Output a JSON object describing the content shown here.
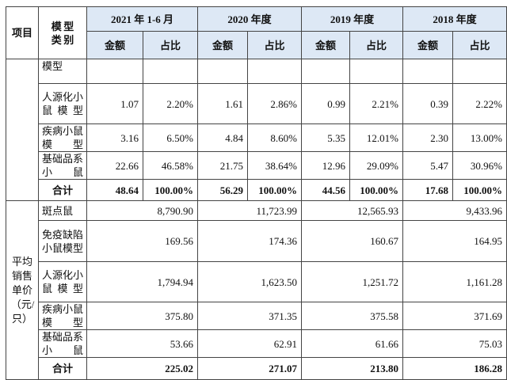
{
  "header": {
    "item": "项目",
    "model_type": "模型类别",
    "periods": [
      "2021 年 1-6 月",
      "2020 年度",
      "2019 年度",
      "2018 年度"
    ],
    "amount": "金额",
    "ratio": "占比"
  },
  "revenue": {
    "rows": [
      {
        "name": "模型",
        "cells": [
          "",
          "",
          "",
          "",
          "",
          "",
          "",
          ""
        ]
      },
      {
        "name": "人源化小鼠模型",
        "cells": [
          "1.07",
          "2.20%",
          "1.61",
          "2.86%",
          "0.99",
          "2.21%",
          "0.39",
          "2.22%"
        ]
      },
      {
        "name": "疾病小鼠模型",
        "cells": [
          "3.16",
          "6.50%",
          "4.84",
          "8.60%",
          "5.35",
          "12.01%",
          "2.30",
          "13.00%"
        ]
      },
      {
        "name": "基础品系小鼠",
        "cells": [
          "22.66",
          "46.58%",
          "21.75",
          "38.64%",
          "12.96",
          "29.09%",
          "5.47",
          "30.96%"
        ]
      }
    ],
    "total": {
      "name": "合计",
      "cells": [
        "48.64",
        "100.00%",
        "56.29",
        "100.00%",
        "44.56",
        "100.00%",
        "17.68",
        "100.00%"
      ]
    }
  },
  "price": {
    "section": "平均销售单价（元/只）",
    "rows": [
      {
        "name": "斑点鼠",
        "cells": [
          "8,790.90",
          "11,723.99",
          "12,565.93",
          "9,433.96"
        ]
      },
      {
        "name": "免疫缺陷小鼠模型",
        "cells": [
          "169.56",
          "174.36",
          "160.67",
          "164.95"
        ]
      },
      {
        "name": "人源化小鼠模型",
        "cells": [
          "1,794.94",
          "1,623.50",
          "1,251.72",
          "1,161.28"
        ]
      },
      {
        "name": "疾病小鼠模型",
        "cells": [
          "375.80",
          "371.35",
          "375.58",
          "371.69"
        ]
      },
      {
        "name": "基础品系小鼠",
        "cells": [
          "53.66",
          "62.91",
          "61.66",
          "75.03"
        ]
      }
    ],
    "total": {
      "name": "合计",
      "cells": [
        "225.02",
        "271.07",
        "213.80",
        "186.28"
      ]
    }
  }
}
